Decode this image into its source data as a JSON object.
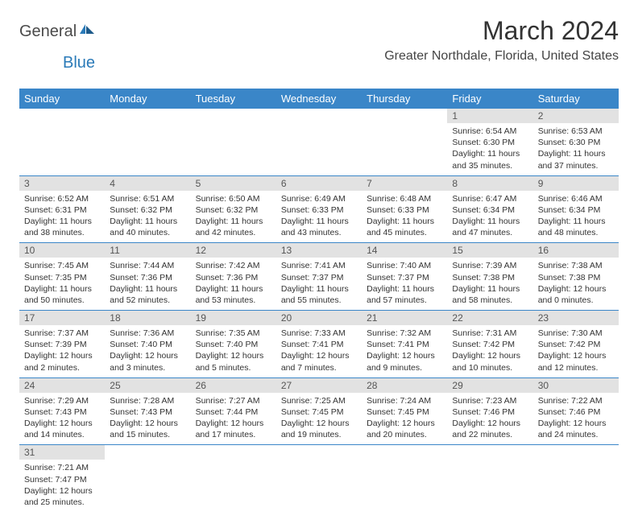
{
  "logo": {
    "part1": "General",
    "part2": "Blue"
  },
  "title": "March 2024",
  "location": "Greater Northdale, Florida, United States",
  "colors": {
    "header_bg": "#3a86c8",
    "header_text": "#ffffff",
    "daynum_bg": "#e2e2e2",
    "daynum_text": "#555555",
    "body_text": "#333333",
    "border": "#3a86c8",
    "logo_gray": "#4a4a4a",
    "logo_blue": "#2a7ab8"
  },
  "weekdays": [
    "Sunday",
    "Monday",
    "Tuesday",
    "Wednesday",
    "Thursday",
    "Friday",
    "Saturday"
  ],
  "weeks": [
    [
      null,
      null,
      null,
      null,
      null,
      {
        "n": "1",
        "sr": "Sunrise: 6:54 AM",
        "ss": "Sunset: 6:30 PM",
        "d1": "Daylight: 11 hours",
        "d2": "and 35 minutes."
      },
      {
        "n": "2",
        "sr": "Sunrise: 6:53 AM",
        "ss": "Sunset: 6:30 PM",
        "d1": "Daylight: 11 hours",
        "d2": "and 37 minutes."
      }
    ],
    [
      {
        "n": "3",
        "sr": "Sunrise: 6:52 AM",
        "ss": "Sunset: 6:31 PM",
        "d1": "Daylight: 11 hours",
        "d2": "and 38 minutes."
      },
      {
        "n": "4",
        "sr": "Sunrise: 6:51 AM",
        "ss": "Sunset: 6:32 PM",
        "d1": "Daylight: 11 hours",
        "d2": "and 40 minutes."
      },
      {
        "n": "5",
        "sr": "Sunrise: 6:50 AM",
        "ss": "Sunset: 6:32 PM",
        "d1": "Daylight: 11 hours",
        "d2": "and 42 minutes."
      },
      {
        "n": "6",
        "sr": "Sunrise: 6:49 AM",
        "ss": "Sunset: 6:33 PM",
        "d1": "Daylight: 11 hours",
        "d2": "and 43 minutes."
      },
      {
        "n": "7",
        "sr": "Sunrise: 6:48 AM",
        "ss": "Sunset: 6:33 PM",
        "d1": "Daylight: 11 hours",
        "d2": "and 45 minutes."
      },
      {
        "n": "8",
        "sr": "Sunrise: 6:47 AM",
        "ss": "Sunset: 6:34 PM",
        "d1": "Daylight: 11 hours",
        "d2": "and 47 minutes."
      },
      {
        "n": "9",
        "sr": "Sunrise: 6:46 AM",
        "ss": "Sunset: 6:34 PM",
        "d1": "Daylight: 11 hours",
        "d2": "and 48 minutes."
      }
    ],
    [
      {
        "n": "10",
        "sr": "Sunrise: 7:45 AM",
        "ss": "Sunset: 7:35 PM",
        "d1": "Daylight: 11 hours",
        "d2": "and 50 minutes."
      },
      {
        "n": "11",
        "sr": "Sunrise: 7:44 AM",
        "ss": "Sunset: 7:36 PM",
        "d1": "Daylight: 11 hours",
        "d2": "and 52 minutes."
      },
      {
        "n": "12",
        "sr": "Sunrise: 7:42 AM",
        "ss": "Sunset: 7:36 PM",
        "d1": "Daylight: 11 hours",
        "d2": "and 53 minutes."
      },
      {
        "n": "13",
        "sr": "Sunrise: 7:41 AM",
        "ss": "Sunset: 7:37 PM",
        "d1": "Daylight: 11 hours",
        "d2": "and 55 minutes."
      },
      {
        "n": "14",
        "sr": "Sunrise: 7:40 AM",
        "ss": "Sunset: 7:37 PM",
        "d1": "Daylight: 11 hours",
        "d2": "and 57 minutes."
      },
      {
        "n": "15",
        "sr": "Sunrise: 7:39 AM",
        "ss": "Sunset: 7:38 PM",
        "d1": "Daylight: 11 hours",
        "d2": "and 58 minutes."
      },
      {
        "n": "16",
        "sr": "Sunrise: 7:38 AM",
        "ss": "Sunset: 7:38 PM",
        "d1": "Daylight: 12 hours",
        "d2": "and 0 minutes."
      }
    ],
    [
      {
        "n": "17",
        "sr": "Sunrise: 7:37 AM",
        "ss": "Sunset: 7:39 PM",
        "d1": "Daylight: 12 hours",
        "d2": "and 2 minutes."
      },
      {
        "n": "18",
        "sr": "Sunrise: 7:36 AM",
        "ss": "Sunset: 7:40 PM",
        "d1": "Daylight: 12 hours",
        "d2": "and 3 minutes."
      },
      {
        "n": "19",
        "sr": "Sunrise: 7:35 AM",
        "ss": "Sunset: 7:40 PM",
        "d1": "Daylight: 12 hours",
        "d2": "and 5 minutes."
      },
      {
        "n": "20",
        "sr": "Sunrise: 7:33 AM",
        "ss": "Sunset: 7:41 PM",
        "d1": "Daylight: 12 hours",
        "d2": "and 7 minutes."
      },
      {
        "n": "21",
        "sr": "Sunrise: 7:32 AM",
        "ss": "Sunset: 7:41 PM",
        "d1": "Daylight: 12 hours",
        "d2": "and 9 minutes."
      },
      {
        "n": "22",
        "sr": "Sunrise: 7:31 AM",
        "ss": "Sunset: 7:42 PM",
        "d1": "Daylight: 12 hours",
        "d2": "and 10 minutes."
      },
      {
        "n": "23",
        "sr": "Sunrise: 7:30 AM",
        "ss": "Sunset: 7:42 PM",
        "d1": "Daylight: 12 hours",
        "d2": "and 12 minutes."
      }
    ],
    [
      {
        "n": "24",
        "sr": "Sunrise: 7:29 AM",
        "ss": "Sunset: 7:43 PM",
        "d1": "Daylight: 12 hours",
        "d2": "and 14 minutes."
      },
      {
        "n": "25",
        "sr": "Sunrise: 7:28 AM",
        "ss": "Sunset: 7:43 PM",
        "d1": "Daylight: 12 hours",
        "d2": "and 15 minutes."
      },
      {
        "n": "26",
        "sr": "Sunrise: 7:27 AM",
        "ss": "Sunset: 7:44 PM",
        "d1": "Daylight: 12 hours",
        "d2": "and 17 minutes."
      },
      {
        "n": "27",
        "sr": "Sunrise: 7:25 AM",
        "ss": "Sunset: 7:45 PM",
        "d1": "Daylight: 12 hours",
        "d2": "and 19 minutes."
      },
      {
        "n": "28",
        "sr": "Sunrise: 7:24 AM",
        "ss": "Sunset: 7:45 PM",
        "d1": "Daylight: 12 hours",
        "d2": "and 20 minutes."
      },
      {
        "n": "29",
        "sr": "Sunrise: 7:23 AM",
        "ss": "Sunset: 7:46 PM",
        "d1": "Daylight: 12 hours",
        "d2": "and 22 minutes."
      },
      {
        "n": "30",
        "sr": "Sunrise: 7:22 AM",
        "ss": "Sunset: 7:46 PM",
        "d1": "Daylight: 12 hours",
        "d2": "and 24 minutes."
      }
    ],
    [
      {
        "n": "31",
        "sr": "Sunrise: 7:21 AM",
        "ss": "Sunset: 7:47 PM",
        "d1": "Daylight: 12 hours",
        "d2": "and 25 minutes."
      },
      null,
      null,
      null,
      null,
      null,
      null
    ]
  ]
}
